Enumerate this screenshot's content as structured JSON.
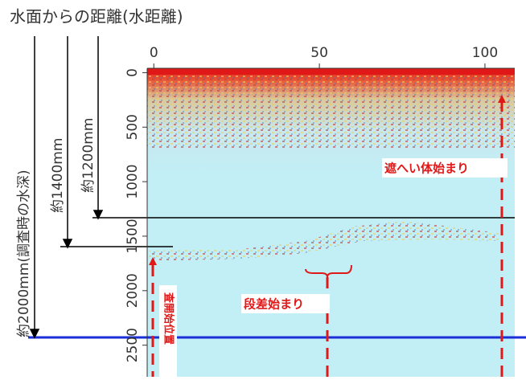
{
  "chart_data": {
    "type": "heatmap",
    "title": "水面からの距離(水距離)",
    "xlim": [
      -2,
      109
    ],
    "xticks": [
      0,
      50,
      100
    ],
    "ylim": [
      -40,
      2790
    ],
    "yticks": [
      0,
      500,
      1000,
      1500,
      2000,
      2500
    ],
    "annotations": {
      "depth_total": "約2000mm(調査時の水深)",
      "depth_1400": "約1400mm",
      "depth_1200": "約1200mm",
      "shield": "遮へい体始まり",
      "step": "段差始まり",
      "start": "査開始位置"
    }
  }
}
